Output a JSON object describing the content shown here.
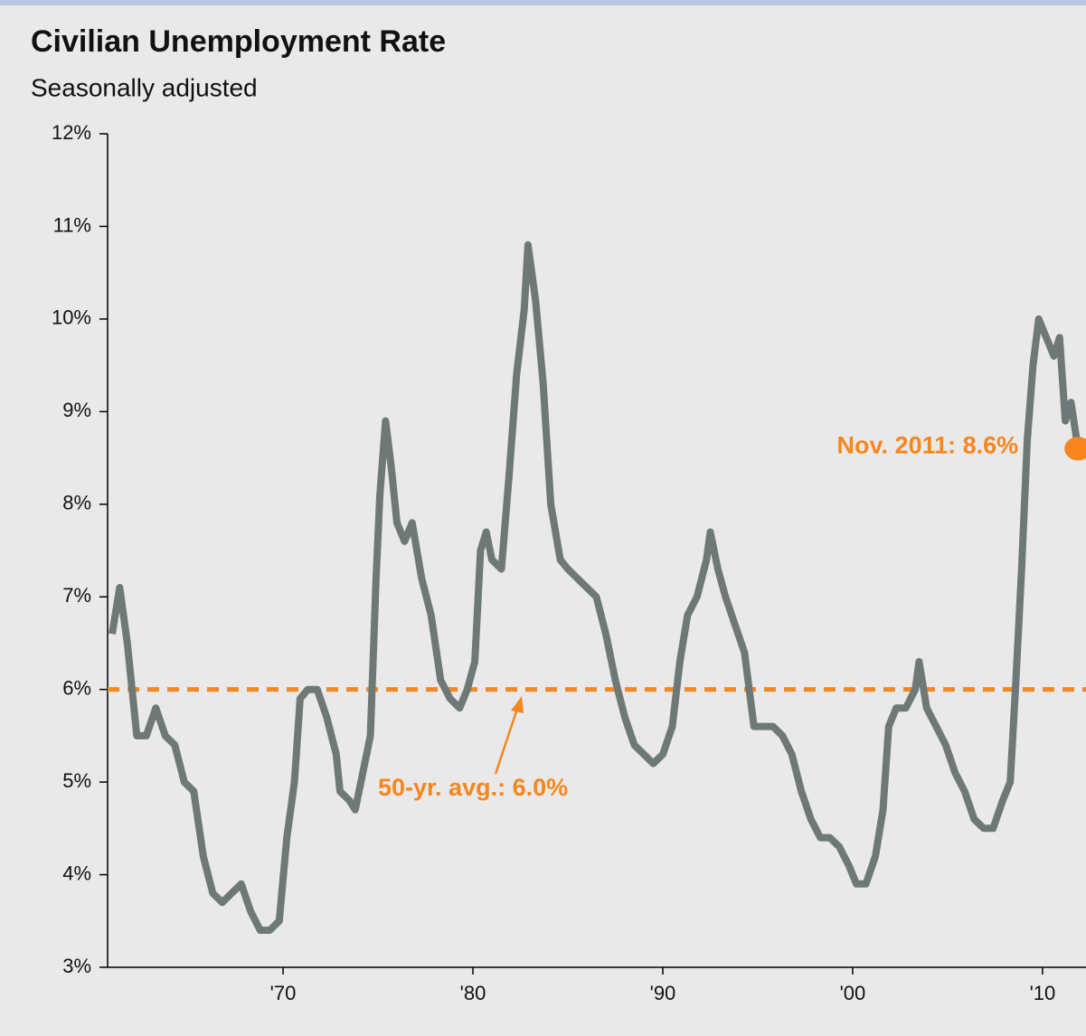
{
  "chart_data": {
    "type": "line",
    "title": "Civilian Unemployment Rate",
    "subtitle": "Seasonally adjusted",
    "x": [
      1961.0,
      1961.4,
      1961.8,
      1962.3,
      1962.8,
      1963.3,
      1963.8,
      1964.3,
      1964.8,
      1965.3,
      1965.8,
      1966.3,
      1966.8,
      1967.3,
      1967.8,
      1968.3,
      1968.8,
      1969.3,
      1969.8,
      1970.2,
      1970.6,
      1970.9,
      1971.3,
      1971.8,
      1972.3,
      1972.8,
      1973.0,
      1973.5,
      1973.8,
      1974.2,
      1974.6,
      1974.9,
      1975.1,
      1975.4,
      1975.7,
      1976.0,
      1976.4,
      1976.8,
      1977.3,
      1977.8,
      1978.3,
      1978.8,
      1979.3,
      1979.7,
      1980.1,
      1980.4,
      1980.7,
      1981.0,
      1981.5,
      1981.9,
      1982.3,
      1982.7,
      1982.9,
      1983.3,
      1983.7,
      1984.1,
      1984.6,
      1985.0,
      1985.5,
      1986.0,
      1986.5,
      1987.0,
      1987.5,
      1988.0,
      1988.5,
      1989.0,
      1989.5,
      1990.0,
      1990.5,
      1990.9,
      1991.3,
      1991.8,
      1992.3,
      1992.5,
      1992.9,
      1993.3,
      1993.8,
      1994.3,
      1994.8,
      1995.3,
      1995.8,
      1996.3,
      1996.8,
      1997.3,
      1997.8,
      1998.3,
      1998.8,
      1999.3,
      1999.8,
      2000.2,
      2000.7,
      2001.2,
      2001.6,
      2001.9,
      2002.3,
      2002.8,
      2003.3,
      2003.5,
      2003.9,
      2004.4,
      2004.9,
      2005.4,
      2005.9,
      2006.4,
      2006.9,
      2007.4,
      2007.9,
      2008.3,
      2008.6,
      2008.9,
      2009.2,
      2009.5,
      2009.8,
      2010.2,
      2010.6,
      2010.9,
      2011.2,
      2011.5,
      2011.87
    ],
    "series": [
      {
        "name": "Unemployment rate",
        "color": "#6e7977",
        "values": [
          6.6,
          7.1,
          6.5,
          5.5,
          5.5,
          5.8,
          5.5,
          5.4,
          5.0,
          4.9,
          4.2,
          3.8,
          3.7,
          3.8,
          3.9,
          3.6,
          3.4,
          3.4,
          3.5,
          4.4,
          5.0,
          5.9,
          6.0,
          6.0,
          5.7,
          5.3,
          4.9,
          4.8,
          4.7,
          5.1,
          5.5,
          7.2,
          8.1,
          8.9,
          8.4,
          7.8,
          7.6,
          7.8,
          7.2,
          6.8,
          6.1,
          5.9,
          5.8,
          6.0,
          6.3,
          7.5,
          7.7,
          7.4,
          7.3,
          8.3,
          9.4,
          10.1,
          10.8,
          10.2,
          9.3,
          8.0,
          7.4,
          7.3,
          7.2,
          7.1,
          7.0,
          6.6,
          6.1,
          5.7,
          5.4,
          5.3,
          5.2,
          5.3,
          5.6,
          6.3,
          6.8,
          7.0,
          7.4,
          7.7,
          7.3,
          7.0,
          6.7,
          6.4,
          5.6,
          5.6,
          5.6,
          5.5,
          5.3,
          4.9,
          4.6,
          4.4,
          4.4,
          4.3,
          4.1,
          3.9,
          3.9,
          4.2,
          4.7,
          5.6,
          5.8,
          5.8,
          6.0,
          6.3,
          5.8,
          5.6,
          5.4,
          5.1,
          4.9,
          4.6,
          4.5,
          4.5,
          4.8,
          5.0,
          6.1,
          7.3,
          8.7,
          9.5,
          10.0,
          9.8,
          9.6,
          9.8,
          8.9,
          9.1,
          8.6
        ]
      }
    ],
    "average": {
      "value": 6.0,
      "label": "50-yr. avg.: 6.0%",
      "color": "#f7861e"
    },
    "highlight": {
      "x": 2011.87,
      "value": 8.6,
      "label": "Nov. 2011: 8.6%",
      "color": "#f7861e"
    },
    "xlim": [
      1960.76,
      2012.29
    ],
    "xticks": [
      {
        "value": 1970,
        "label": "'70"
      },
      {
        "value": 1980,
        "label": "'80"
      },
      {
        "value": 1990,
        "label": "'90"
      },
      {
        "value": 2000,
        "label": "'00"
      },
      {
        "value": 2010,
        "label": "'10"
      }
    ],
    "ylim": [
      3,
      12
    ],
    "yticks": [
      {
        "value": 3,
        "label": "3%"
      },
      {
        "value": 4,
        "label": "4%"
      },
      {
        "value": 5,
        "label": "5%"
      },
      {
        "value": 6,
        "label": "6%"
      },
      {
        "value": 7,
        "label": "7%"
      },
      {
        "value": 8,
        "label": "8%"
      },
      {
        "value": 9,
        "label": "9%"
      },
      {
        "value": 10,
        "label": "10%"
      },
      {
        "value": 11,
        "label": "11%"
      },
      {
        "value": 12,
        "label": "12%"
      }
    ]
  }
}
